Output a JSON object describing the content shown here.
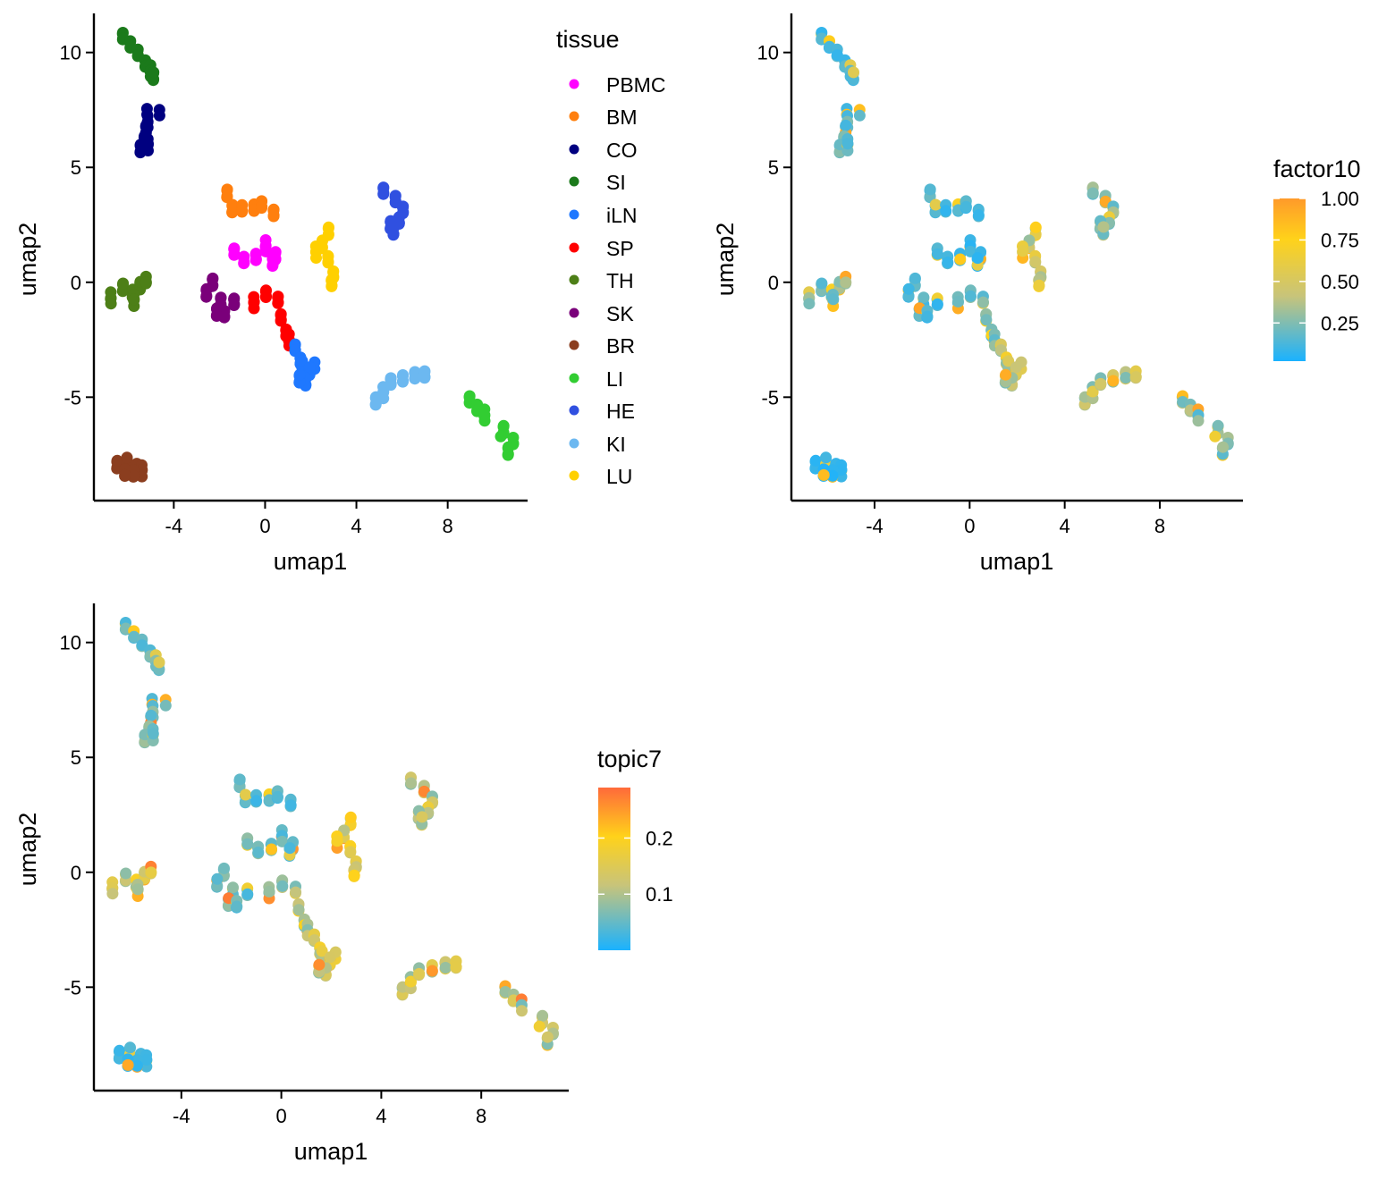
{
  "figure": {
    "colors": {
      "PBMC": "#ff00ff",
      "BM": "#ff7f0e",
      "CO": "#000080",
      "SI": "#1b7a1b",
      "iLN": "#1f78ff",
      "SP": "#ff0000",
      "TH": "#4d7f17",
      "SK": "#7a007a",
      "BR": "#8b3e1f",
      "LI": "#32cd32",
      "HE": "#3050e0",
      "KI": "#6cb8f0",
      "LU": "#ffd000"
    },
    "gradient": [
      "#1ab2ff",
      "#c8c47a",
      "#ffd21a",
      "#ff9a2a"
    ],
    "gradient_topic": [
      "#1ab2ff",
      "#c8c47a",
      "#ffd21a",
      "#ff6a3a"
    ]
  },
  "chart_data": [
    {
      "type": "scatter",
      "panel": "tissue",
      "xlabel": "umap1",
      "ylabel": "umap2",
      "xlim": [
        -7.5,
        11.5
      ],
      "ylim": [
        -9.5,
        11.7
      ],
      "xticks": [
        "-4",
        "0",
        "4",
        "8"
      ],
      "yticks": [
        "-5",
        "0",
        "5",
        "10"
      ],
      "legend": {
        "title": "tissue",
        "position": "right",
        "entries": [
          "PBMC",
          "BM",
          "CO",
          "SI",
          "iLN",
          "SP",
          "TH",
          "SK",
          "BR",
          "LI",
          "HE",
          "KI",
          "LU"
        ]
      },
      "clusters": [
        {
          "label": "SI",
          "points": [
            [
              -6.3,
              10.6
            ],
            [
              -6.0,
              10.3
            ],
            [
              -5.7,
              10.0
            ],
            [
              -5.4,
              9.6
            ],
            [
              -5.2,
              9.2
            ],
            [
              -5.1,
              8.9
            ]
          ]
        },
        {
          "label": "CO",
          "points": [
            [
              -4.9,
              7.5
            ],
            [
              -4.9,
              7.0
            ],
            [
              -5.0,
              6.6
            ],
            [
              -5.1,
              6.2
            ],
            [
              -5.3,
              5.9
            ],
            [
              -5.0,
              6.0
            ]
          ]
        },
        {
          "label": "BM",
          "points": [
            [
              -1.6,
              3.9
            ],
            [
              -1.4,
              3.3
            ],
            [
              -1.0,
              3.1
            ],
            [
              -0.5,
              3.2
            ],
            [
              -0.2,
              3.4
            ],
            [
              0.3,
              3.1
            ]
          ]
        },
        {
          "label": "PBMC",
          "points": [
            [
              -1.5,
              1.3
            ],
            [
              -1.1,
              1.0
            ],
            [
              -0.6,
              1.2
            ],
            [
              -0.2,
              1.6
            ],
            [
              0.2,
              1.1
            ],
            [
              0.6,
              0.9
            ]
          ]
        },
        {
          "label": "SK",
          "points": [
            [
              -2.1,
              -0.1
            ],
            [
              -2.4,
              -0.5
            ],
            [
              -1.8,
              -0.8
            ],
            [
              -2.0,
              -1.2
            ],
            [
              -1.7,
              -1.5
            ],
            [
              -1.3,
              -0.9
            ]
          ]
        },
        {
          "label": "SP",
          "points": [
            [
              -0.5,
              -0.9
            ],
            [
              0.0,
              -0.6
            ],
            [
              0.5,
              -0.8
            ],
            [
              0.6,
              -1.5
            ],
            [
              0.8,
              -2.1
            ],
            [
              0.9,
              -2.5
            ]
          ]
        },
        {
          "label": "iLN",
          "points": [
            [
              1.1,
              -2.8
            ],
            [
              1.3,
              -3.3
            ],
            [
              1.9,
              -3.7
            ],
            [
              2.2,
              -3.9
            ],
            [
              2.0,
              -4.3
            ],
            [
              1.7,
              -4.1
            ]
          ]
        },
        {
          "label": "LU",
          "points": [
            [
              2.9,
              2.2
            ],
            [
              2.6,
              1.7
            ],
            [
              2.3,
              1.3
            ],
            [
              2.8,
              0.9
            ],
            [
              3.0,
              0.3
            ],
            [
              2.9,
              0.0
            ]
          ]
        },
        {
          "label": "HE",
          "points": [
            [
              5.1,
              3.9
            ],
            [
              5.6,
              3.6
            ],
            [
              5.9,
              3.2
            ],
            [
              5.7,
              2.8
            ],
            [
              5.3,
              2.4
            ],
            [
              5.4,
              2.2
            ]
          ]
        },
        {
          "label": "TH",
          "points": [
            [
              -6.5,
              -0.7
            ],
            [
              -6.0,
              -0.3
            ],
            [
              -5.6,
              -0.5
            ],
            [
              -5.3,
              -0.1
            ],
            [
              -5.6,
              -0.8
            ],
            [
              -5.1,
              0.0
            ]
          ]
        },
        {
          "label": "KI",
          "points": [
            [
              4.9,
              -5.1
            ],
            [
              5.2,
              -4.8
            ],
            [
              5.5,
              -4.4
            ],
            [
              6.0,
              -4.2
            ],
            [
              6.5,
              -4.0
            ],
            [
              6.9,
              -3.9
            ]
          ]
        },
        {
          "label": "LI",
          "points": [
            [
              8.8,
              -5.1
            ],
            [
              9.1,
              -5.4
            ],
            [
              9.4,
              -5.8
            ],
            [
              10.2,
              -6.5
            ],
            [
              10.6,
              -6.9
            ],
            [
              10.9,
              -7.3
            ]
          ]
        },
        {
          "label": "BR",
          "points": [
            [
              -6.3,
              -8.0
            ],
            [
              -5.9,
              -7.8
            ],
            [
              -5.5,
              -8.0
            ],
            [
              -5.3,
              -8.2
            ],
            [
              -5.7,
              -8.4
            ],
            [
              -6.1,
              -8.3
            ]
          ]
        }
      ]
    },
    {
      "type": "scatter",
      "panel": "factor10",
      "xlabel": "umap1",
      "ylabel": "umap2",
      "xlim": [
        -7.5,
        11.5
      ],
      "ylim": [
        -9.5,
        11.7
      ],
      "xticks": [
        "-4",
        "0",
        "4",
        "8"
      ],
      "yticks": [
        "-5",
        "0",
        "5",
        "10"
      ],
      "legend": {
        "title": "factor10",
        "type": "colorbar",
        "range": [
          0.02,
          1.0
        ],
        "ticks": [
          "1.00",
          "0.75",
          "0.50",
          "0.25"
        ]
      },
      "cluster_values": {
        "SI": 0.1,
        "CO": 0.15,
        "BM": 0.1,
        "PBMC": 0.08,
        "SK": 0.1,
        "SP": 0.15,
        "iLN": 0.3,
        "LU": 0.35,
        "HE": 0.2,
        "TH": 0.2,
        "KI": 0.3,
        "LI": 0.2,
        "BR": 0.06
      }
    },
    {
      "type": "scatter",
      "panel": "topic7",
      "xlabel": "umap1",
      "ylabel": "umap2",
      "xlim": [
        -7.5,
        11.5
      ],
      "ylim": [
        -9.5,
        11.7
      ],
      "xticks": [
        "-4",
        "0",
        "4",
        "8"
      ],
      "yticks": [
        "-5",
        "0",
        "5",
        "10"
      ],
      "legend": {
        "title": "topic7",
        "type": "colorbar",
        "range": [
          0.0,
          0.29
        ],
        "ticks": [
          "0.2",
          "0.1"
        ]
      },
      "cluster_values": {
        "SI": 0.04,
        "CO": 0.05,
        "BM": 0.03,
        "PBMC": 0.04,
        "SK": 0.04,
        "SP": 0.06,
        "iLN": 0.1,
        "LU": 0.12,
        "HE": 0.08,
        "TH": 0.1,
        "KI": 0.1,
        "LI": 0.08,
        "BR": 0.02
      }
    }
  ]
}
